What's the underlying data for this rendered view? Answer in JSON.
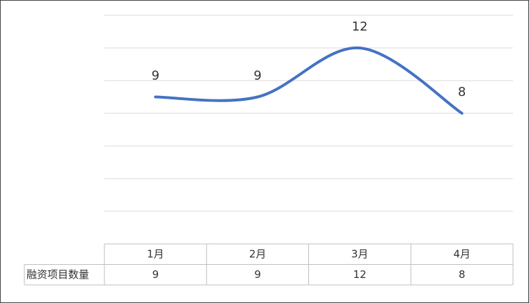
{
  "chart_data": {
    "type": "line",
    "categories": [
      "1月",
      "2月",
      "3月",
      "4月"
    ],
    "series": [
      {
        "name": "融资项目数量",
        "color": "#4472c4",
        "values": [
          9,
          9,
          12,
          8
        ]
      }
    ],
    "ylim": [
      0,
      14
    ],
    "yticks": [
      0,
      2,
      4,
      6,
      8,
      10,
      12,
      14
    ],
    "grid": true,
    "smooth": true,
    "data_table": true
  }
}
